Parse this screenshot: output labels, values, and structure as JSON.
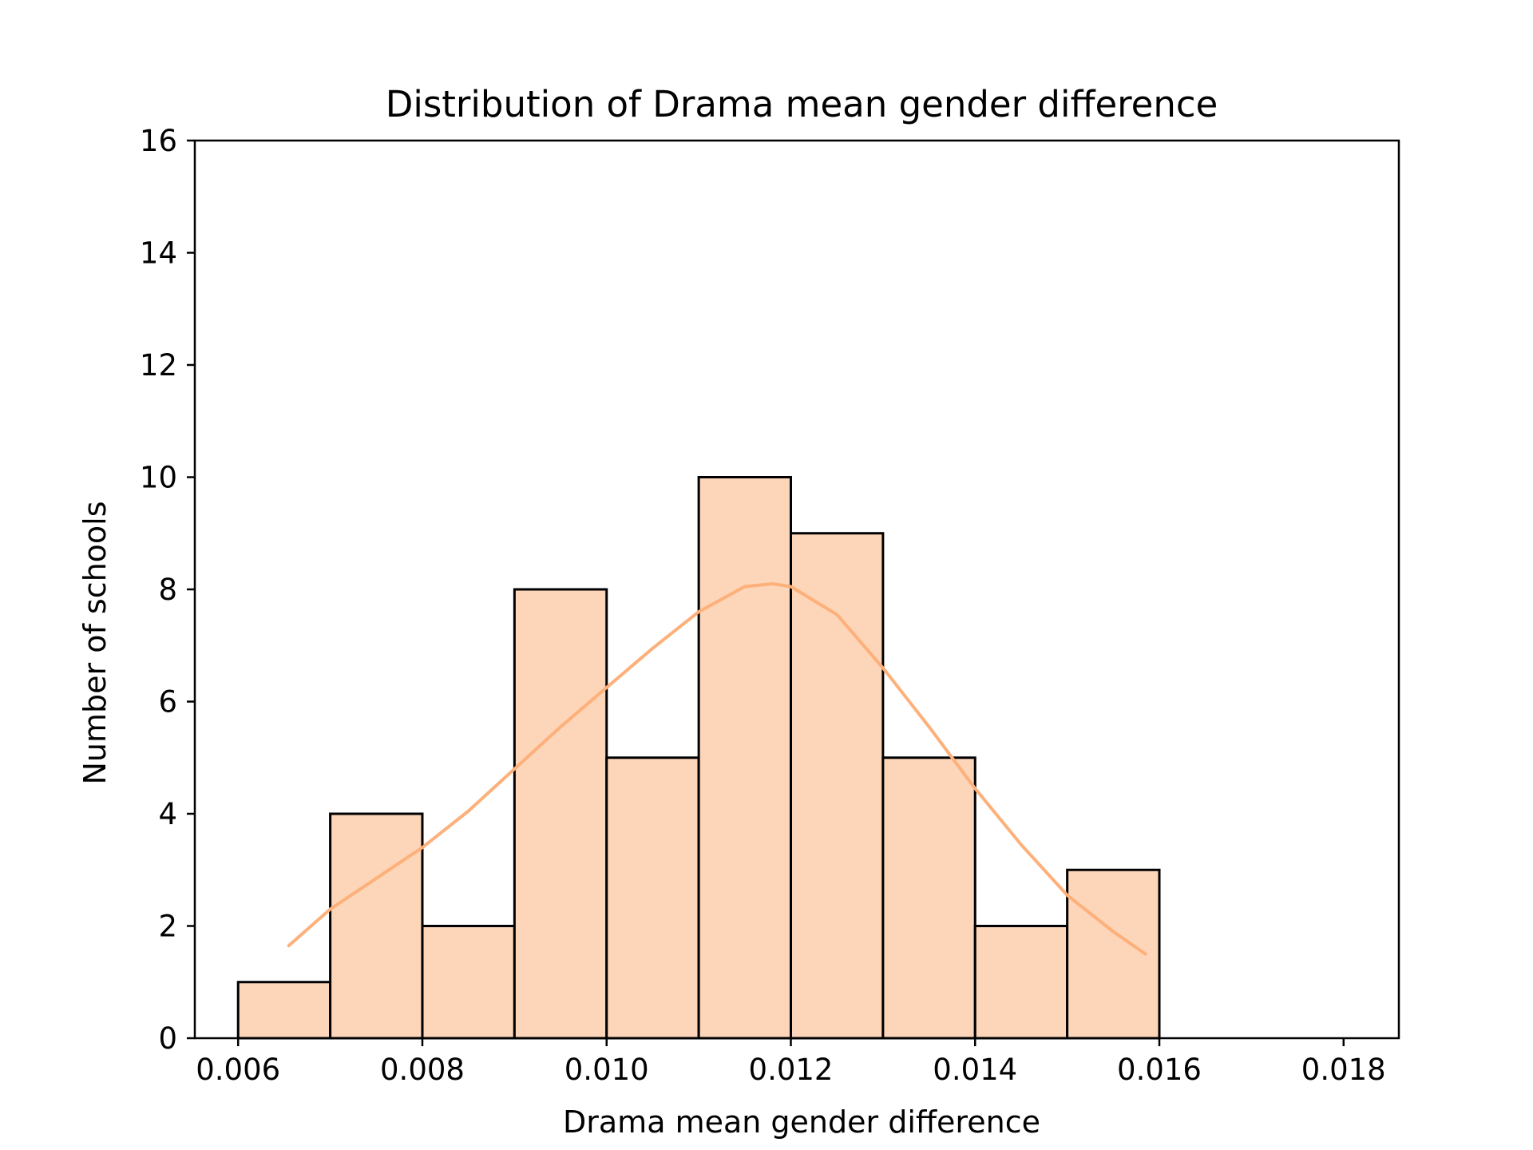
{
  "chart_data": {
    "type": "bar",
    "title": "Distribution of Drama mean gender difference",
    "xlabel": "Drama mean gender difference",
    "ylabel": "Number of schools",
    "xlim": [
      0.00553,
      0.0186
    ],
    "ylim": [
      0,
      16
    ],
    "xticks": [
      "0.006",
      "0.008",
      "0.010",
      "0.012",
      "0.014",
      "0.016",
      "0.018"
    ],
    "yticks": [
      "0",
      "2",
      "4",
      "6",
      "8",
      "10",
      "12",
      "14",
      "16"
    ],
    "bin_edges": [
      0.006,
      0.007,
      0.008,
      0.009,
      0.01,
      0.011,
      0.012,
      0.013,
      0.014,
      0.015,
      0.016,
      0.017,
      0.018
    ],
    "counts": [
      1,
      4,
      2,
      8,
      5,
      10,
      9,
      5,
      2,
      3,
      0,
      0
    ],
    "bar_color": "#fdd5b9",
    "edge_color": "#000000",
    "kde": {
      "color": "#fdb07a",
      "x": [
        0.00655,
        0.007,
        0.0075,
        0.008,
        0.0085,
        0.009,
        0.0095,
        0.01,
        0.0105,
        0.011,
        0.0115,
        0.0118,
        0.012,
        0.0125,
        0.013,
        0.0135,
        0.014,
        0.0145,
        0.015,
        0.0155,
        0.01585
      ],
      "y": [
        1.65,
        2.3,
        2.85,
        3.4,
        4.05,
        4.8,
        5.55,
        6.25,
        6.95,
        7.6,
        8.05,
        8.1,
        8.05,
        7.55,
        6.6,
        5.55,
        4.45,
        3.45,
        2.55,
        1.9,
        1.5
      ]
    },
    "grid": false,
    "legend": "none"
  }
}
